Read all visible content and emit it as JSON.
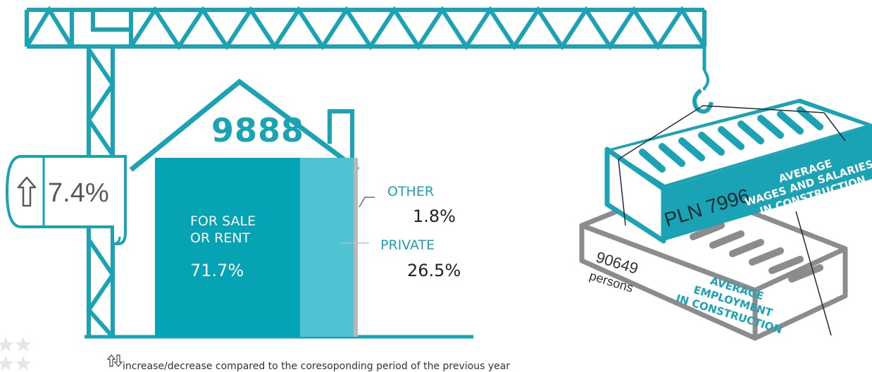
{
  "house": {
    "total": "9888",
    "for_sale_label_line1": "FOR SALE",
    "for_sale_label_line2": "OR RENT",
    "for_sale_value": "71.7%",
    "other_label": "OTHER",
    "other_value": "1.8%",
    "private_label": "PRIVATE",
    "private_value": "26.5%"
  },
  "change_banner": {
    "value": "7.4%",
    "icon": "up-arrow-icon"
  },
  "wages_container": {
    "value": "PLN 7996",
    "title_line1": "AVERAGE",
    "title_line2": "WAGES AND SALARIES",
    "title_line3": "IN CONSTRUCTION"
  },
  "employment_container": {
    "value": "90649",
    "unit": "persons",
    "title_line1": "AVERAGE",
    "title_line2": "EMPLOYMENT",
    "title_line3": "IN CONSTRUCTION"
  },
  "footnote": {
    "text": "increase/decrease compared to the coresoponding period of the previous year"
  },
  "colors": {
    "accent": "#1aa3b4",
    "sale_block": "#06a3b5",
    "private_block": "#4ec3d1",
    "other_strip": "#b8b8b8",
    "grey_container": "#8c8c8c"
  }
}
